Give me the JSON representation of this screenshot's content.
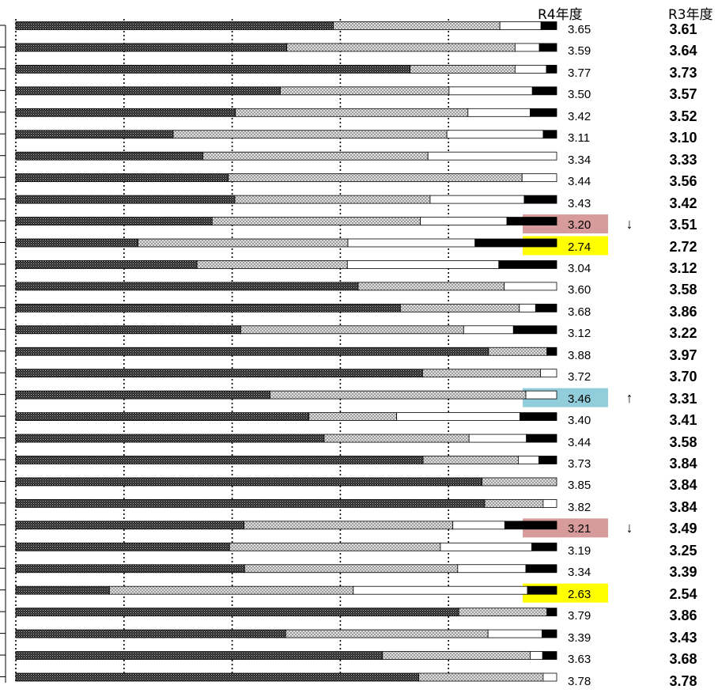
{
  "headers": {
    "current": "R4年度",
    "previous": "R3年度"
  },
  "colors": {
    "down": "#d79b9b",
    "low": "#ffff00",
    "up": "#92cddc",
    "bar_dark": "#1a1a1a",
    "bar_light": "#cfcfcf"
  },
  "chart_data": {
    "type": "bar",
    "orientation": "horizontal-stacked-100",
    "grid": "dotted-vertical",
    "series": [
      {
        "pattern": "dense-dark"
      },
      {
        "pattern": "light-crosshatch"
      },
      {
        "pattern": "white"
      },
      {
        "pattern": "solid-black"
      }
    ],
    "rows": [
      {
        "s": [
          58.7,
          30.8,
          7.6,
          2.9
        ],
        "r4": "3.65",
        "r3": "3.61"
      },
      {
        "s": [
          50.1,
          42.2,
          4.5,
          3.2
        ],
        "r4": "3.59",
        "r3": "3.64"
      },
      {
        "s": [
          72.9,
          19.4,
          5.8,
          1.9
        ],
        "r4": "3.77",
        "r3": "3.73"
      },
      {
        "s": [
          48.9,
          31.2,
          15.4,
          4.5
        ],
        "r4": "3.50",
        "r3": "3.57"
      },
      {
        "s": [
          40.6,
          43.0,
          11.5,
          4.9
        ],
        "r4": "3.42",
        "r3": "3.52"
      },
      {
        "s": [
          29.1,
          50.6,
          17.8,
          2.5
        ],
        "r4": "3.11",
        "r3": "3.10"
      },
      {
        "s": [
          34.6,
          41.6,
          23.8,
          0.0
        ],
        "r4": "3.34",
        "r3": "3.33"
      },
      {
        "s": [
          39.3,
          54.3,
          6.4,
          0.0
        ],
        "r4": "3.44",
        "r3": "3.56"
      },
      {
        "s": [
          40.5,
          36.1,
          17.4,
          6.0
        ],
        "r4": "3.43",
        "r3": "3.42"
      },
      {
        "s": [
          36.3,
          38.5,
          16.0,
          9.2
        ],
        "r4": "3.20",
        "r3": "3.51"
      },
      {
        "s": [
          22.6,
          38.8,
          23.5,
          15.1
        ],
        "r4": "2.74",
        "r3": "2.72"
      },
      {
        "s": [
          33.5,
          27.8,
          28.0,
          10.7
        ],
        "r4": "3.04",
        "r3": "3.12"
      },
      {
        "s": [
          63.3,
          27.0,
          9.7,
          0.0
        ],
        "r4": "3.60",
        "r3": "3.58"
      },
      {
        "s": [
          71.1,
          22.0,
          3.0,
          3.9
        ],
        "r4": "3.68",
        "r3": "3.86"
      },
      {
        "s": [
          41.6,
          41.2,
          9.2,
          8.0
        ],
        "r4": "3.12",
        "r3": "3.22"
      },
      {
        "s": [
          87.4,
          10.8,
          0.0,
          1.8
        ],
        "r4": "3.88",
        "r3": "3.97"
      },
      {
        "s": [
          75.2,
          21.8,
          3.0,
          0.0
        ],
        "r4": "3.72",
        "r3": "3.70"
      },
      {
        "s": [
          47.0,
          47.3,
          5.7,
          0.0
        ],
        "r4": "3.46",
        "r3": "3.31"
      },
      {
        "s": [
          54.2,
          16.2,
          22.8,
          6.8
        ],
        "r4": "3.40",
        "r3": "3.41"
      },
      {
        "s": [
          57.0,
          26.8,
          10.6,
          5.6
        ],
        "r4": "3.44",
        "r3": "3.58"
      },
      {
        "s": [
          75.3,
          17.6,
          3.8,
          3.3
        ],
        "r4": "3.73",
        "r3": "3.84"
      },
      {
        "s": [
          86.2,
          13.8,
          0.0,
          0.0
        ],
        "r4": "3.85",
        "r3": "3.84"
      },
      {
        "s": [
          86.7,
          10.8,
          2.5,
          0.0
        ],
        "r4": "3.82",
        "r3": "3.84"
      },
      {
        "s": [
          42.2,
          38.6,
          9.6,
          9.6
        ],
        "r4": "3.21",
        "r3": "3.49"
      },
      {
        "s": [
          39.5,
          39.0,
          16.9,
          4.6
        ],
        "r4": "3.19",
        "r3": "3.25"
      },
      {
        "s": [
          42.3,
          39.4,
          12.6,
          5.7
        ],
        "r4": "3.34",
        "r3": "3.39"
      },
      {
        "s": [
          17.3,
          45.1,
          32.2,
          5.4
        ],
        "r4": "2.63",
        "r3": "2.54"
      },
      {
        "s": [
          81.9,
          16.3,
          0.0,
          1.8
        ],
        "r4": "3.79",
        "r3": "3.86"
      },
      {
        "s": [
          49.9,
          37.4,
          10.0,
          2.7
        ],
        "r4": "3.39",
        "r3": "3.43"
      },
      {
        "s": [
          67.8,
          27.3,
          2.3,
          2.6
        ],
        "r4": "3.63",
        "r3": "3.68"
      },
      {
        "s": [
          74.5,
          23.0,
          2.5,
          0.0
        ],
        "r4": "3.78",
        "r3": "3.78"
      }
    ],
    "highlights": [
      {
        "row": 9,
        "state": "down",
        "arrow": "↓"
      },
      {
        "row": 10,
        "state": "low"
      },
      {
        "row": 17,
        "state": "up",
        "arrow": "↑"
      },
      {
        "row": 23,
        "state": "down",
        "arrow": "↓"
      },
      {
        "row": 26,
        "state": "low"
      }
    ]
  }
}
